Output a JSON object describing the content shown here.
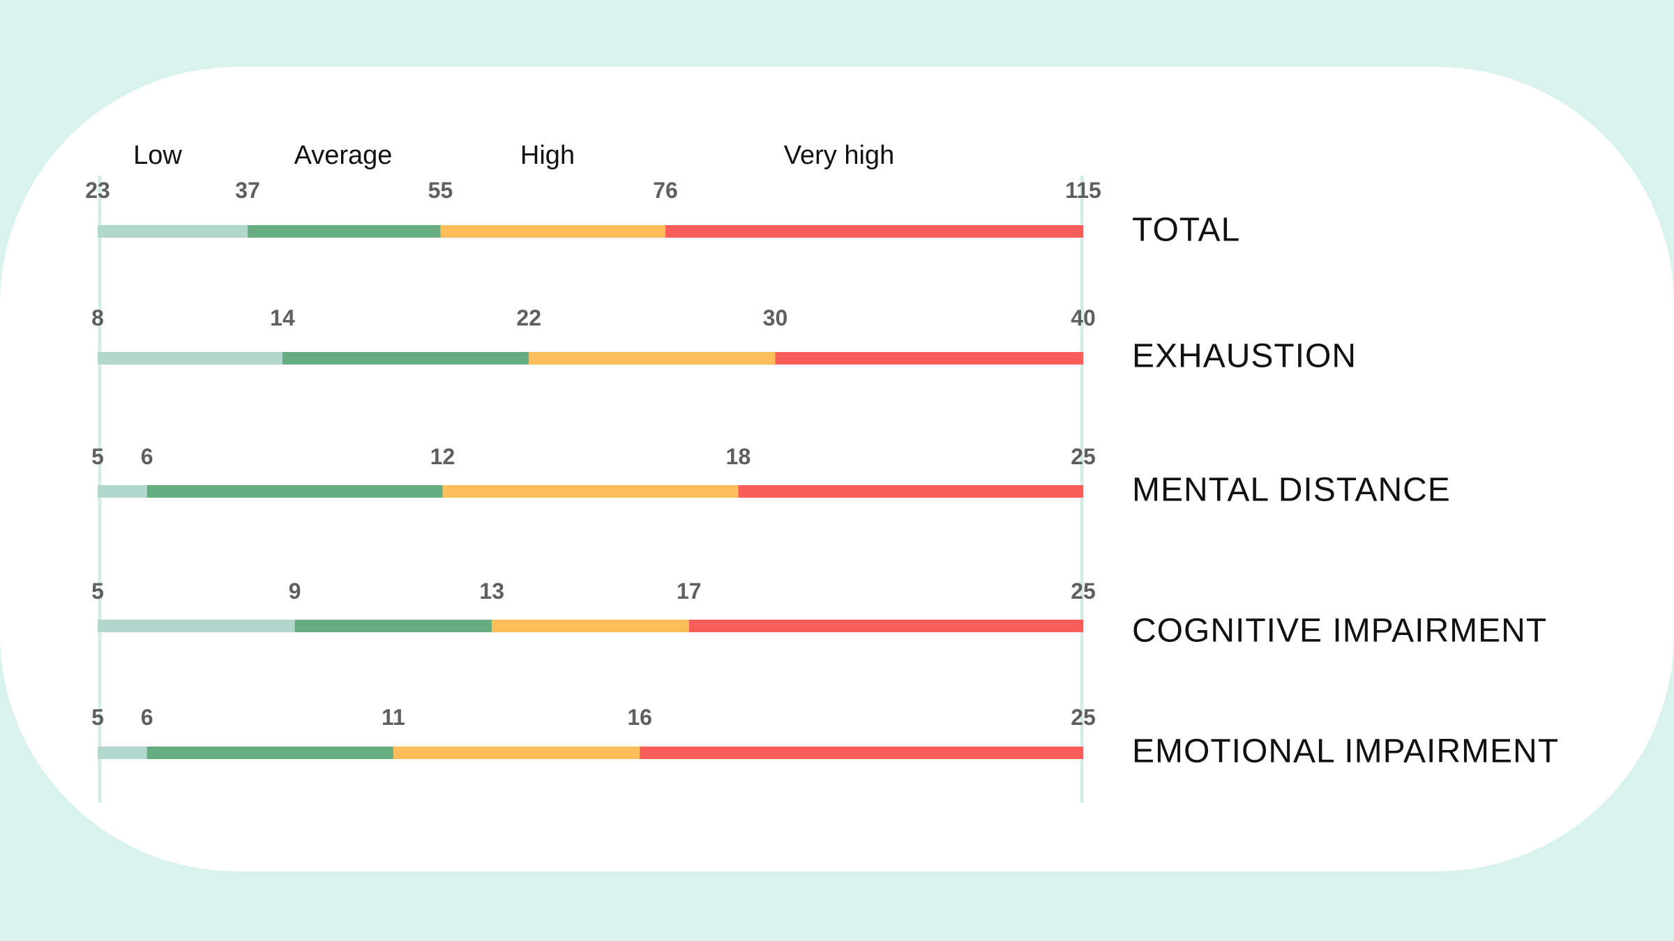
{
  "chart_data": {
    "type": "bar",
    "subtype": "segmented-range-scales",
    "bands": [
      "Low",
      "Average",
      "High",
      "Very high"
    ],
    "colors": {
      "Low": "#b2d8cd",
      "Average": "#66ad82",
      "High": "#fcbd5b",
      "Very high": "#f95e5a",
      "axis": "#d6ece6"
    },
    "rows": [
      {
        "name": "TOTAL",
        "ticks": [
          23,
          37,
          55,
          76,
          115
        ]
      },
      {
        "name": "EXHAUSTION",
        "ticks": [
          8,
          14,
          22,
          30,
          40
        ]
      },
      {
        "name": "MENTAL DISTANCE",
        "ticks": [
          5,
          6,
          12,
          18,
          25
        ]
      },
      {
        "name": "COGNITIVE IMPAIRMENT",
        "ticks": [
          5,
          9,
          13,
          17,
          25
        ]
      },
      {
        "name": "EMOTIONAL IMPAIRMENT",
        "ticks": [
          5,
          6,
          11,
          16,
          25
        ]
      }
    ]
  }
}
